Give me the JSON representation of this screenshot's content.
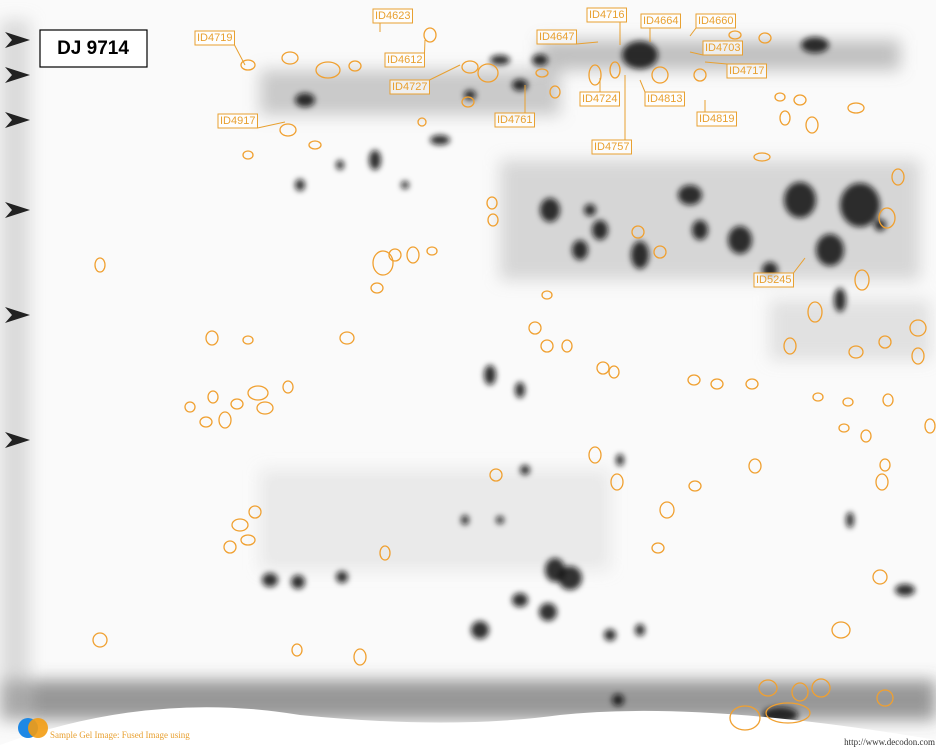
{
  "gel_title": "DJ 9714",
  "labels": [
    "ID4623",
    "ID4719",
    "ID4612",
    "ID4727",
    "ID4917",
    "ID4761",
    "ID4716",
    "ID4664",
    "ID4660",
    "ID4647",
    "ID4703",
    "ID4717",
    "ID4724",
    "ID4813",
    "ID4819",
    "ID4757",
    "ID5245"
  ],
  "footer": {
    "caption": "Sample Gel Image: Fused Image using",
    "url": "http://www.decodon.com"
  }
}
